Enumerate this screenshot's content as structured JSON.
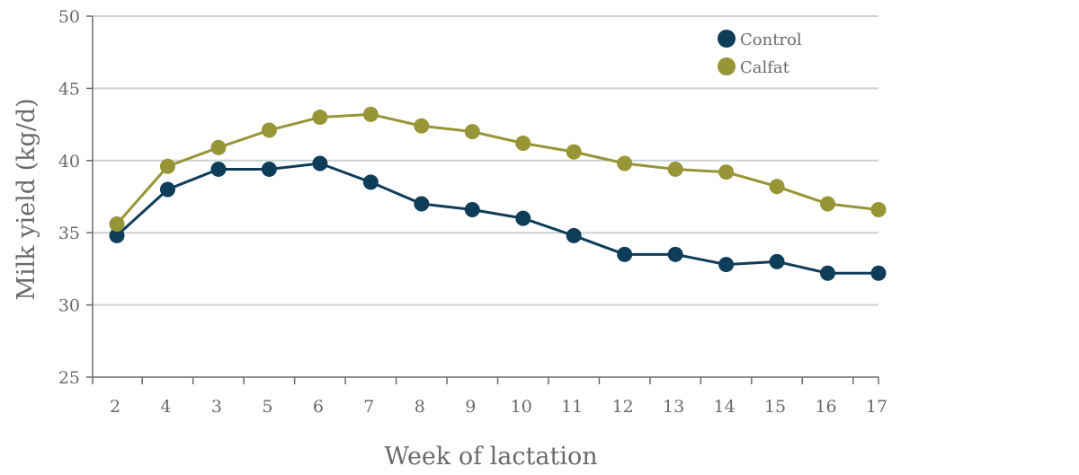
{
  "chart_data": {
    "type": "line",
    "title": "",
    "xlabel": "Week of lactation",
    "ylabel": "Milk yield (kg/d)",
    "categories": [
      "2",
      "4",
      "3",
      "5",
      "6",
      "7",
      "8",
      "9",
      "10",
      "11",
      "12",
      "13",
      "14",
      "15",
      "16",
      "17"
    ],
    "ylim": [
      25,
      50
    ],
    "yticks": [
      "25",
      "30",
      "35",
      "40",
      "45",
      "50"
    ],
    "grid": true,
    "legend_position": "top-right",
    "series": [
      {
        "name": "Control",
        "color": "#0e3d5a",
        "values": [
          34.8,
          38.0,
          39.4,
          39.4,
          39.8,
          38.5,
          37.0,
          36.6,
          36.0,
          34.8,
          33.5,
          33.5,
          32.8,
          33.0,
          32.2,
          32.2
        ]
      },
      {
        "name": "Calfat",
        "color": "#979536",
        "values": [
          35.6,
          39.6,
          40.9,
          42.1,
          43.0,
          43.2,
          42.4,
          42.0,
          41.2,
          40.6,
          39.8,
          39.4,
          39.2,
          38.2,
          37.0,
          36.6
        ]
      }
    ]
  }
}
